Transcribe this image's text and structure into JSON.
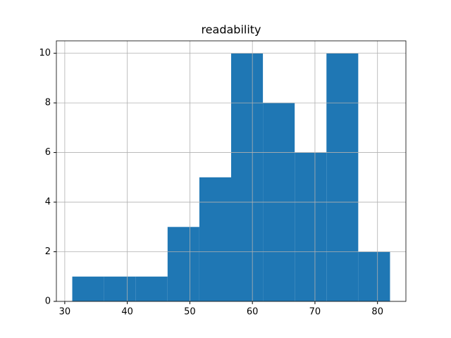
{
  "chart_data": {
    "type": "histogram",
    "title": "readability",
    "bins": [
      31.2,
      36.28,
      41.36,
      46.44,
      51.52,
      56.6,
      61.68,
      66.76,
      71.84,
      76.92,
      82.0
    ],
    "values": [
      1,
      1,
      1,
      3,
      5,
      10,
      8,
      6,
      10,
      2
    ],
    "color": "#1f77b4",
    "xlim": [
      28.66,
      84.54
    ],
    "xticks": [
      30,
      40,
      50,
      60,
      70,
      80
    ],
    "ylim": [
      0,
      10.5
    ],
    "yticks": [
      0,
      2,
      4,
      6,
      8,
      10
    ],
    "grid": true
  }
}
